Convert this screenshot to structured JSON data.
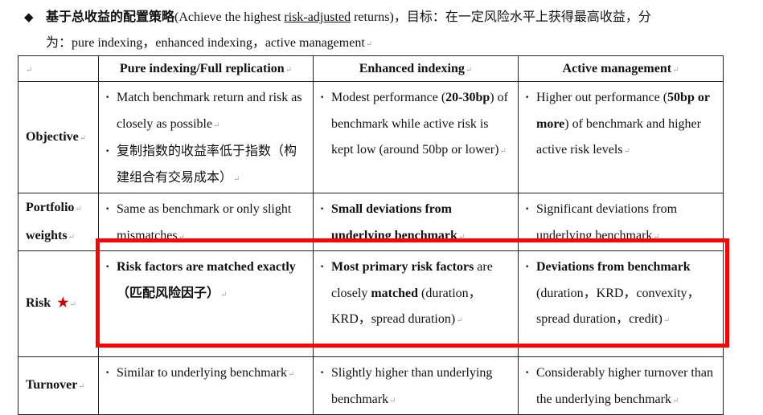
{
  "intro": {
    "bullet_icon": "diamond-bullet",
    "title_cn": "基于总收益的配置策略",
    "title_en_before": "(Achieve the highest ",
    "title_en_underlined": "risk-adjusted",
    "title_en_after": " returns)，目标：在一定风险水平上获得最高收益，分",
    "line2": "为：pure indexing，enhanced indexing，active management"
  },
  "table": {
    "headers": [
      "",
      "Pure indexing/Full replication",
      "Enhanced indexing",
      "Active management"
    ],
    "rows": [
      {
        "label": [
          "Objective"
        ],
        "cells": [
          [
            {
              "bullet": true,
              "segs": [
                {
                  "t": "Match benchmark return and risk as closely as possible",
                  "b": false
                }
              ]
            },
            {
              "bullet": true,
              "segs": [
                {
                  "t": "复制指数的收益率低于指数（构建组合有交易成本）",
                  "b": false
                }
              ]
            }
          ],
          [
            {
              "bullet": true,
              "segs": [
                {
                  "t": "Modest performance (",
                  "b": false
                },
                {
                  "t": "20-30bp",
                  "b": true
                },
                {
                  "t": ") of benchmark while active risk is kept low (around 50bp or lower)",
                  "b": false
                }
              ]
            }
          ],
          [
            {
              "bullet": true,
              "segs": [
                {
                  "t": "Higher out performance (",
                  "b": false
                },
                {
                  "t": "50bp or more",
                  "b": true
                },
                {
                  "t": ") of benchmark and higher active risk levels",
                  "b": false
                }
              ]
            }
          ]
        ]
      },
      {
        "label": [
          "Portfolio",
          "weights"
        ],
        "cells": [
          [
            {
              "bullet": true,
              "segs": [
                {
                  "t": "Same as benchmark or only slight mismatches",
                  "b": false
                }
              ]
            }
          ],
          [
            {
              "bullet": true,
              "segs": [
                {
                  "t": "Small deviations from underlying benchmark",
                  "b": true
                }
              ]
            }
          ],
          [
            {
              "bullet": true,
              "segs": [
                {
                  "t": "Significant deviations from underlying benchmark",
                  "b": false
                }
              ]
            }
          ]
        ]
      },
      {
        "label": [
          "Risk"
        ],
        "label_icon": "star",
        "label_icon_color": "#d00000",
        "highlighted": true,
        "highlight_color": "#ff0000",
        "cells": [
          [
            {
              "bullet": true,
              "segs": [
                {
                  "t": "Risk factors are matched exactly（匹配风险因子）",
                  "b": true
                }
              ]
            }
          ],
          [
            {
              "bullet": true,
              "segs": [
                {
                  "t": "Most primary risk factors",
                  "b": true
                },
                {
                  "t": " are closely ",
                  "b": false
                },
                {
                  "t": "matched",
                  "b": true
                },
                {
                  "t": " (duration，KRD，spread duration)",
                  "b": false
                }
              ]
            }
          ],
          [
            {
              "bullet": true,
              "segs": [
                {
                  "t": "Deviations from benchmark",
                  "b": true
                },
                {
                  "t": " (duration，KRD，convexity，spread duration，credit)",
                  "b": false
                }
              ]
            }
          ]
        ]
      },
      {
        "label": [
          "Turnover"
        ],
        "cells": [
          [
            {
              "bullet": true,
              "segs": [
                {
                  "t": "Similar to underlying benchmark",
                  "b": false
                }
              ]
            }
          ],
          [
            {
              "bullet": true,
              "segs": [
                {
                  "t": "Slightly higher than underlying benchmark",
                  "b": false
                }
              ]
            }
          ],
          [
            {
              "bullet": true,
              "segs": [
                {
                  "t": "Considerably higher turnover than the underlying benchmark",
                  "b": false
                }
              ]
            }
          ]
        ]
      }
    ]
  }
}
